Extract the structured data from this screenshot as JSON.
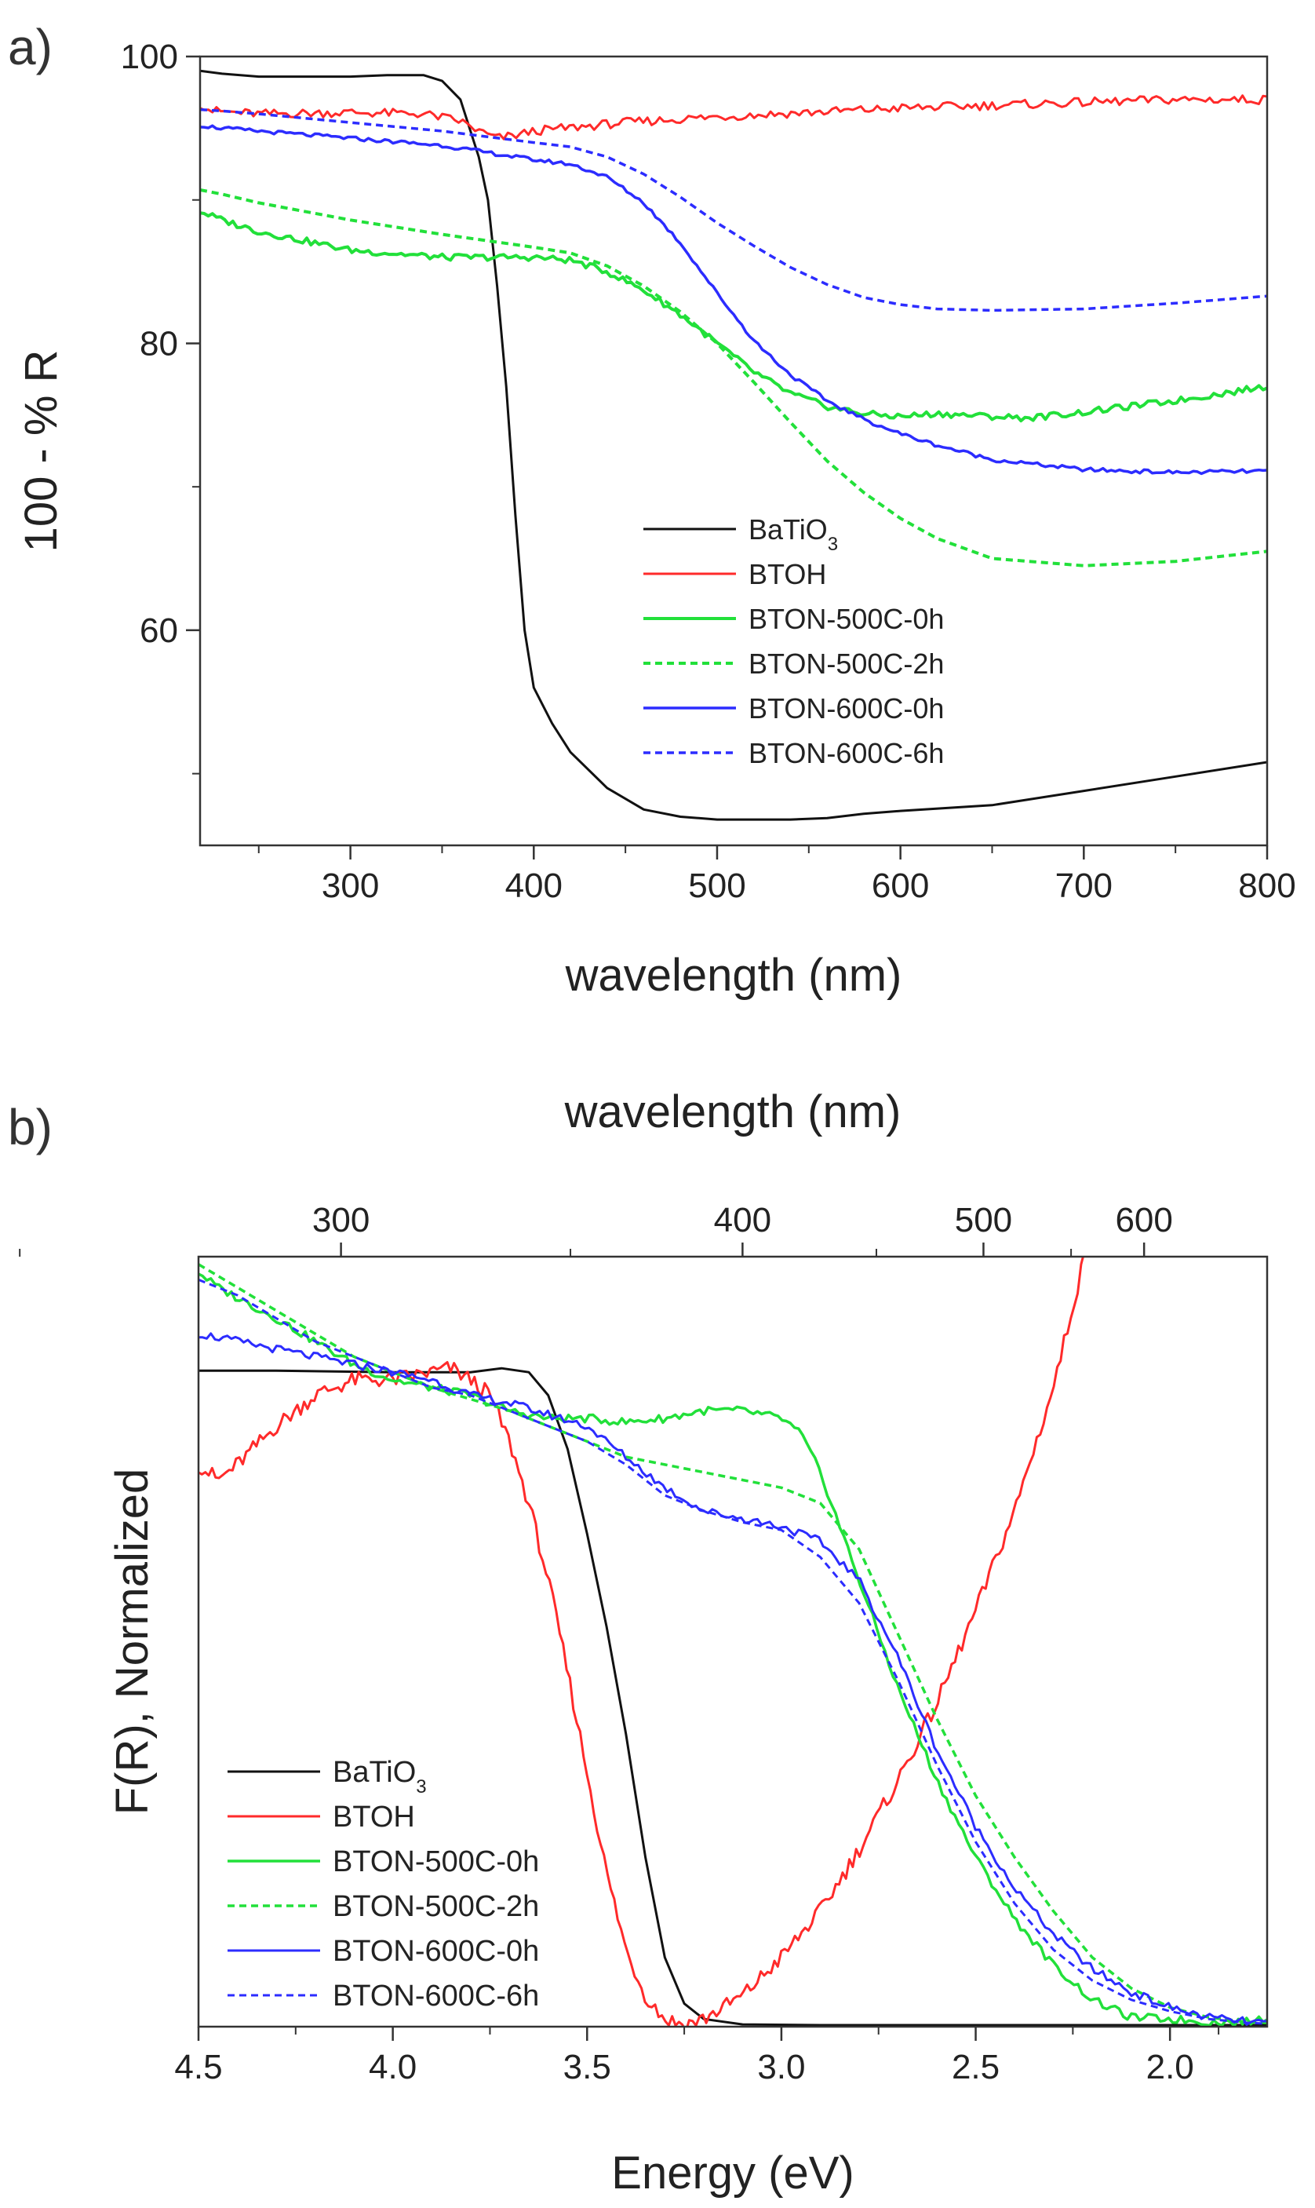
{
  "figure": {
    "panel_a_label": "a)",
    "panel_b_label": "b)"
  },
  "colors": {
    "black": "#111111",
    "red": "#ff2a2a",
    "green": "#22e03a",
    "blue": "#2c2cff"
  },
  "chart_data": [
    {
      "id": "a",
      "type": "line",
      "title": "",
      "xlabel": "wavelength (nm)",
      "ylabel": "100 - % R",
      "xlim": [
        218,
        800
      ],
      "ylim": [
        45,
        100
      ],
      "xticks": [
        300,
        400,
        500,
        600,
        700,
        800
      ],
      "yticks": [
        60,
        80,
        100
      ],
      "xticks_minor": [
        250,
        350,
        450,
        550,
        650,
        750
      ],
      "yticks_minor": [
        50,
        70,
        90
      ],
      "grid": false,
      "legend_position": "lower-right",
      "series": [
        {
          "name": "BaTiO3",
          "label_main": "BaTiO",
          "label_sub": "3",
          "color": "black",
          "style": "solid",
          "width": 3,
          "x": [
            218,
            230,
            250,
            280,
            300,
            320,
            340,
            350,
            360,
            370,
            375,
            380,
            385,
            390,
            395,
            400,
            410,
            420,
            440,
            460,
            480,
            500,
            520,
            540,
            560,
            580,
            600,
            650,
            700,
            750,
            800
          ],
          "y": [
            99,
            98.8,
            98.6,
            98.6,
            98.6,
            98.7,
            98.7,
            98.3,
            97,
            93,
            90,
            84,
            77,
            68,
            60,
            56,
            53.5,
            51.5,
            49,
            47.5,
            47,
            46.8,
            46.8,
            46.8,
            46.9,
            47.2,
            47.4,
            47.8,
            48.8,
            49.8,
            50.8
          ]
        },
        {
          "name": "BTOH",
          "label_main": "BTOH",
          "color": "red",
          "style": "solid",
          "width": 3,
          "x": [
            218,
            225,
            250,
            300,
            340,
            360,
            370,
            380,
            390,
            400,
            450,
            500,
            550,
            600,
            650,
            700,
            750,
            800
          ],
          "y": [
            96.7,
            96.2,
            96.0,
            96.1,
            96.0,
            95.5,
            94.8,
            94.3,
            94.5,
            94.8,
            95.4,
            95.8,
            96.1,
            96.4,
            96.6,
            96.8,
            97.0,
            97.0
          ],
          "noise": 0.35
        },
        {
          "name": "BTON-500C-0h",
          "label_main": "BTON-500C-0h",
          "color": "green",
          "style": "solid",
          "width": 4,
          "x": [
            218,
            230,
            250,
            300,
            350,
            400,
            420,
            440,
            460,
            480,
            500,
            520,
            540,
            560,
            580,
            600,
            620,
            650,
            670,
            700,
            750,
            800
          ],
          "y": [
            89.2,
            88.6,
            87.8,
            86.5,
            86.0,
            86.0,
            85.8,
            85.0,
            83.7,
            82.0,
            80.0,
            78.0,
            76.5,
            75.6,
            75.1,
            74.9,
            75.1,
            74.9,
            74.8,
            75.2,
            76.0,
            77.0
          ],
          "noise": 0.25
        },
        {
          "name": "BTON-500C-2h",
          "label_main": "BTON-500C-2h",
          "color": "green",
          "style": "dotted",
          "width": 4,
          "x": [
            218,
            230,
            250,
            300,
            350,
            400,
            420,
            440,
            460,
            480,
            500,
            520,
            540,
            560,
            580,
            600,
            620,
            650,
            700,
            750,
            800
          ],
          "y": [
            90.7,
            90.4,
            89.8,
            88.6,
            87.6,
            86.7,
            86.3,
            85.4,
            84.0,
            82.2,
            80.0,
            77.3,
            74.5,
            71.8,
            69.6,
            67.8,
            66.4,
            65.0,
            64.5,
            64.8,
            65.5
          ]
        },
        {
          "name": "BTON-600C-0h",
          "label_main": "BTON-600C-0h",
          "color": "blue",
          "style": "solid",
          "width": 3.5,
          "x": [
            218,
            230,
            250,
            300,
            350,
            400,
            420,
            440,
            460,
            480,
            500,
            520,
            540,
            560,
            580,
            600,
            620,
            650,
            700,
            750,
            800
          ],
          "y": [
            95.2,
            95.0,
            94.8,
            94.3,
            93.8,
            92.8,
            92.5,
            91.6,
            89.8,
            87.0,
            83.5,
            80.2,
            77.8,
            76.0,
            74.7,
            73.7,
            72.9,
            71.9,
            71.2,
            71.0,
            71.1
          ],
          "noise": 0.15
        },
        {
          "name": "BTON-600C-6h",
          "label_main": "BTON-600C-6h",
          "color": "blue",
          "style": "dotted",
          "width": 3.5,
          "x": [
            218,
            230,
            250,
            300,
            350,
            400,
            420,
            440,
            460,
            480,
            500,
            520,
            540,
            560,
            580,
            600,
            620,
            650,
            700,
            750,
            800
          ],
          "y": [
            96.3,
            96.2,
            96.0,
            95.4,
            94.8,
            94.0,
            93.7,
            93.0,
            91.8,
            90.2,
            88.4,
            86.8,
            85.3,
            84.1,
            83.2,
            82.7,
            82.4,
            82.3,
            82.4,
            82.8,
            83.3
          ]
        }
      ]
    },
    {
      "id": "b",
      "type": "line",
      "title": "",
      "xlabel": "Energy (eV)",
      "x2label": "wavelength (nm)",
      "ylabel": "F(R), Normalized",
      "xlim": [
        4.5,
        1.75
      ],
      "ylim": [
        0,
        1
      ],
      "xticks": [
        4.5,
        4.0,
        3.5,
        3.0,
        2.5,
        2.0
      ],
      "xticks_minor": [
        4.25,
        3.75,
        3.25,
        2.75,
        2.25,
        1.875
      ],
      "x2ticks": [
        300,
        400,
        500,
        600
      ],
      "x2ticks_minor": [
        250,
        350,
        450,
        550
      ],
      "grid": false,
      "legend_position": "lower-left",
      "series": [
        {
          "name": "BaTiO3",
          "label_main": "BaTiO",
          "label_sub": "3",
          "color": "black",
          "style": "solid",
          "width": 3,
          "x": [
            4.5,
            4.3,
            4.0,
            3.8,
            3.72,
            3.65,
            3.6,
            3.55,
            3.5,
            3.45,
            3.4,
            3.35,
            3.3,
            3.25,
            3.2,
            3.1,
            2.9,
            2.5,
            2.0,
            1.75
          ],
          "y": [
            0.852,
            0.852,
            0.85,
            0.85,
            0.855,
            0.85,
            0.82,
            0.75,
            0.64,
            0.52,
            0.38,
            0.22,
            0.09,
            0.03,
            0.01,
            0.003,
            0.002,
            0.002,
            0.002,
            0.002
          ]
        },
        {
          "name": "BTOH",
          "label_main": "BTOH",
          "color": "red",
          "style": "solid",
          "width": 3,
          "x": [
            4.5,
            4.45,
            4.4,
            4.3,
            4.2,
            4.1,
            4.0,
            3.9,
            3.85,
            3.8,
            3.75,
            3.7,
            3.65,
            3.6,
            3.55,
            3.5,
            3.45,
            3.4,
            3.35,
            3.3,
            3.25,
            3.2,
            3.1,
            3.0,
            2.9,
            2.8,
            2.7,
            2.6,
            2.5,
            2.4,
            2.3,
            2.22
          ],
          "y": [
            0.73,
            0.71,
            0.73,
            0.78,
            0.82,
            0.84,
            0.84,
            0.85,
            0.855,
            0.84,
            0.82,
            0.76,
            0.68,
            0.58,
            0.46,
            0.33,
            0.2,
            0.1,
            0.04,
            0.01,
            0.003,
            0.01,
            0.04,
            0.09,
            0.15,
            0.23,
            0.32,
            0.42,
            0.54,
            0.67,
            0.83,
            1.0
          ],
          "noise": 0.012
        },
        {
          "name": "BTON-500C-0h",
          "label_main": "BTON-500C-0h",
          "color": "green",
          "style": "solid",
          "width": 3.5,
          "x": [
            4.5,
            4.45,
            4.3,
            4.2,
            4.1,
            4.0,
            3.9,
            3.8,
            3.7,
            3.6,
            3.5,
            3.4,
            3.3,
            3.2,
            3.1,
            3.0,
            2.95,
            2.9,
            2.8,
            2.7,
            2.6,
            2.5,
            2.4,
            2.3,
            2.2,
            2.1,
            2.0,
            1.9,
            1.8,
            1.75
          ],
          "y": [
            0.98,
            0.96,
            0.92,
            0.89,
            0.86,
            0.84,
            0.83,
            0.82,
            0.8,
            0.79,
            0.79,
            0.785,
            0.79,
            0.8,
            0.8,
            0.79,
            0.77,
            0.72,
            0.58,
            0.44,
            0.32,
            0.22,
            0.14,
            0.08,
            0.035,
            0.012,
            0.01,
            0.006,
            0.006,
            0.012
          ],
          "noise": 0.006
        },
        {
          "name": "BTON-500C-2h",
          "label_main": "BTON-500C-2h",
          "color": "green",
          "style": "dotted",
          "width": 3.5,
          "x": [
            4.5,
            4.4,
            4.3,
            4.2,
            4.1,
            4.0,
            3.9,
            3.8,
            3.7,
            3.6,
            3.5,
            3.4,
            3.3,
            3.2,
            3.1,
            3.0,
            2.9,
            2.8,
            2.7,
            2.6,
            2.5,
            2.4,
            2.3,
            2.2,
            2.1,
            2.0,
            1.9,
            1.8,
            1.75
          ],
          "y": [
            0.99,
            0.96,
            0.93,
            0.9,
            0.87,
            0.85,
            0.83,
            0.815,
            0.8,
            0.78,
            0.76,
            0.74,
            0.73,
            0.72,
            0.71,
            0.7,
            0.68,
            0.62,
            0.51,
            0.4,
            0.3,
            0.22,
            0.15,
            0.09,
            0.05,
            0.025,
            0.012,
            0.006,
            0.005
          ]
        },
        {
          "name": "BTON-600C-0h",
          "label_main": "BTON-600C-0h",
          "color": "blue",
          "style": "solid",
          "width": 3,
          "x": [
            4.5,
            4.4,
            4.3,
            4.2,
            4.1,
            4.0,
            3.9,
            3.8,
            3.7,
            3.6,
            3.5,
            3.4,
            3.3,
            3.2,
            3.1,
            3.0,
            2.9,
            2.8,
            2.7,
            2.6,
            2.5,
            2.4,
            2.3,
            2.2,
            2.1,
            2.0,
            1.9,
            1.8,
            1.75
          ],
          "y": [
            0.9,
            0.89,
            0.88,
            0.87,
            0.86,
            0.85,
            0.84,
            0.82,
            0.81,
            0.795,
            0.78,
            0.74,
            0.7,
            0.67,
            0.66,
            0.65,
            0.63,
            0.58,
            0.48,
            0.36,
            0.26,
            0.18,
            0.12,
            0.075,
            0.045,
            0.025,
            0.012,
            0.006,
            0.005
          ],
          "noise": 0.006
        },
        {
          "name": "BTON-600C-6h",
          "label_main": "BTON-600C-6h",
          "color": "blue",
          "style": "dotted",
          "width": 3,
          "x": [
            4.5,
            4.4,
            4.3,
            4.2,
            4.1,
            4.0,
            3.9,
            3.8,
            3.7,
            3.6,
            3.5,
            3.4,
            3.3,
            3.2,
            3.1,
            3.0,
            2.9,
            2.8,
            2.7,
            2.6,
            2.5,
            2.4,
            2.3,
            2.2,
            2.1,
            2.0,
            1.9,
            1.8,
            1.75
          ],
          "y": [
            0.97,
            0.95,
            0.92,
            0.89,
            0.87,
            0.85,
            0.83,
            0.82,
            0.8,
            0.78,
            0.76,
            0.73,
            0.69,
            0.67,
            0.655,
            0.645,
            0.61,
            0.55,
            0.45,
            0.34,
            0.24,
            0.16,
            0.1,
            0.06,
            0.035,
            0.02,
            0.01,
            0.005,
            0.004
          ]
        }
      ]
    }
  ]
}
